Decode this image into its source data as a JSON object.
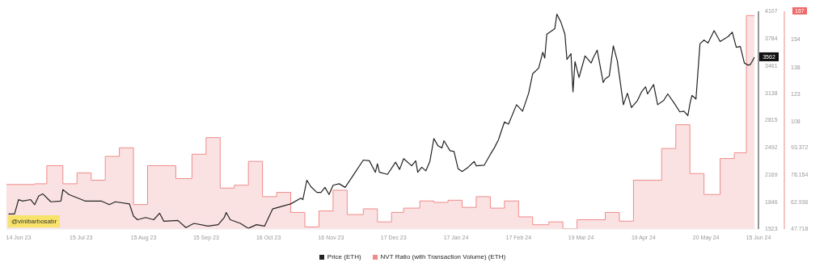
{
  "chart_data": {
    "type": "line",
    "xlim": [
      "2023-06-08",
      "2024-06-15"
    ],
    "xticks": [
      {
        "value": "2023-06-14",
        "label": "14 Jun 23"
      },
      {
        "value": "2023-07-15",
        "label": "15 Jul 23"
      },
      {
        "value": "2023-08-15",
        "label": "15 Aug 23"
      },
      {
        "value": "2023-09-15",
        "label": "15 Sep 23"
      },
      {
        "value": "2023-10-16",
        "label": "16 Oct 23"
      },
      {
        "value": "2023-11-16",
        "label": "16 Nov 23"
      },
      {
        "value": "2023-12-17",
        "label": "17 Dec 23"
      },
      {
        "value": "2024-01-17",
        "label": "17 Jan 24"
      },
      {
        "value": "2024-02-17",
        "label": "17 Feb 24"
      },
      {
        "value": "2024-03-19",
        "label": "19 Mar 24"
      },
      {
        "value": "2024-04-19",
        "label": "19 Apr 24"
      },
      {
        "value": "2024-05-20",
        "label": "20 May 24"
      },
      {
        "value": "2024-06-15",
        "label": "15 Jun 24"
      }
    ],
    "ylim": [
      1523,
      4107
    ],
    "yticks": [
      1523,
      1846,
      2169,
      2492,
      2815,
      3138,
      3461,
      3784,
      4107
    ],
    "y2lim": [
      47.718,
      169.4
    ],
    "y2ticks": [
      47.718,
      62.936,
      78.154,
      93.372,
      108,
      123,
      138,
      154
    ],
    "legend": "bottom",
    "annotations": [
      "@vinibarbosabr",
      "167",
      {
        "text": "3562",
        "x": "2024-06-13",
        "y": 3562
      }
    ],
    "series": [
      {
        "name": "NVT Ratio (with Transaction Volume) (ETH)",
        "type": "step",
        "axis": "y2",
        "color": "#f08a8a",
        "x": [
          "2023-06-08",
          "2023-06-22",
          "2023-06-28",
          "2023-07-06",
          "2023-07-13",
          "2023-07-20",
          "2023-07-27",
          "2023-08-03",
          "2023-08-10",
          "2023-08-17",
          "2023-08-31",
          "2023-09-08",
          "2023-09-15",
          "2023-09-22",
          "2023-09-29",
          "2023-10-06",
          "2023-10-13",
          "2023-10-20",
          "2023-10-27",
          "2023-11-03",
          "2023-11-10",
          "2023-11-17",
          "2023-11-24",
          "2023-12-02",
          "2023-12-09",
          "2023-12-16",
          "2023-12-22",
          "2023-12-30",
          "2024-01-06",
          "2024-01-13",
          "2024-01-20",
          "2024-01-27",
          "2024-02-03",
          "2024-02-10",
          "2024-02-17",
          "2024-02-24",
          "2024-03-03",
          "2024-03-10",
          "2024-03-17",
          "2024-03-31",
          "2024-04-07",
          "2024-04-14",
          "2024-04-28",
          "2024-05-05",
          "2024-05-12",
          "2024-05-19",
          "2024-05-27",
          "2024-06-03",
          "2024-06-09",
          "2024-06-13"
        ],
        "values": [
          72.6,
          73.0,
          83.1,
          73.0,
          79.1,
          75.0,
          88.3,
          93.1,
          61.4,
          83.1,
          75.9,
          89.5,
          98.8,
          70.6,
          72.2,
          85.5,
          65.8,
          68.2,
          57.0,
          48.9,
          57.8,
          69.4,
          55.8,
          59.0,
          51.7,
          57.0,
          59.4,
          63.4,
          62.6,
          63.8,
          59.8,
          65.8,
          59.4,
          63.4,
          54.5,
          50.1,
          51.7,
          47.9,
          52.9,
          57.0,
          52.1,
          75.0,
          92.7,
          106.0,
          78.7,
          67.0,
          87.1,
          90.3,
          167,
          167
        ]
      },
      {
        "name": "Price (ETH)",
        "axis": "y",
        "color": "#222222",
        "x": [
          "2023-06-09",
          "2023-06-12",
          "2023-06-14",
          "2023-06-16",
          "2023-06-20",
          "2023-06-22",
          "2023-06-24",
          "2023-06-26",
          "2023-06-30",
          "2023-07-05",
          "2023-07-06",
          "2023-07-09",
          "2023-07-17",
          "2023-07-25",
          "2023-07-29",
          "2023-08-01",
          "2023-08-08",
          "2023-08-10",
          "2023-08-12",
          "2023-08-16",
          "2023-08-20",
          "2023-08-23",
          "2023-08-25",
          "2023-09-01",
          "2023-09-05",
          "2023-09-09",
          "2023-09-16",
          "2023-09-21",
          "2023-09-24",
          "2023-09-25",
          "2023-09-27",
          "2023-10-02",
          "2023-10-06",
          "2023-10-10",
          "2023-10-14",
          "2023-10-18",
          "2023-10-23",
          "2023-10-27",
          "2023-11-01",
          "2023-11-02",
          "2023-11-04",
          "2023-11-06",
          "2023-11-09",
          "2023-11-11",
          "2023-11-13",
          "2023-11-15",
          "2023-11-17",
          "2023-11-20",
          "2023-11-23",
          "2023-11-28",
          "2023-12-02",
          "2023-12-05",
          "2023-12-08",
          "2023-12-09",
          "2023-12-10",
          "2023-12-14",
          "2023-12-18",
          "2023-12-20",
          "2023-12-22",
          "2023-12-26",
          "2023-12-28",
          "2023-12-29",
          "2023-12-31",
          "2024-01-02",
          "2024-01-04",
          "2024-01-06",
          "2024-01-08",
          "2024-01-10",
          "2024-01-11",
          "2024-01-14",
          "2024-01-16",
          "2024-01-18",
          "2024-01-20",
          "2024-01-23",
          "2024-01-26",
          "2024-01-27",
          "2024-01-31",
          "2024-02-03",
          "2024-02-05",
          "2024-02-07",
          "2024-02-10",
          "2024-02-12",
          "2024-02-16",
          "2024-02-19",
          "2024-02-22",
          "2024-02-24",
          "2024-02-27",
          "2024-02-29",
          "2024-03-01",
          "2024-03-02",
          "2024-03-06",
          "2024-03-07",
          "2024-03-09",
          "2024-03-11",
          "2024-03-12",
          "2024-03-14",
          "2024-03-15",
          "2024-03-16",
          "2024-03-18",
          "2024-03-21",
          "2024-03-24",
          "2024-03-25",
          "2024-03-27",
          "2024-03-30",
          "2024-03-31",
          "2024-04-02",
          "2024-04-04",
          "2024-04-06",
          "2024-04-09",
          "2024-04-11",
          "2024-04-13",
          "2024-04-16",
          "2024-04-18",
          "2024-04-20",
          "2024-04-21",
          "2024-04-24",
          "2024-04-26",
          "2024-04-29",
          "2024-05-01",
          "2024-05-04",
          "2024-05-07",
          "2024-05-09",
          "2024-05-11",
          "2024-05-12",
          "2024-05-13",
          "2024-05-15",
          "2024-05-17",
          "2024-05-19",
          "2024-05-21",
          "2024-05-24",
          "2024-05-27",
          "2024-05-31",
          "2024-06-02",
          "2024-06-04",
          "2024-06-06",
          "2024-06-08",
          "2024-06-10",
          "2024-06-11",
          "2024-06-13"
        ],
        "values": [
          1702,
          1702,
          1872,
          1855,
          1872,
          1812,
          1915,
          1940,
          1846,
          1855,
          1991,
          1932,
          1855,
          1855,
          1812,
          1846,
          1821,
          1676,
          1633,
          1659,
          1633,
          1710,
          1616,
          1625,
          1540,
          1590,
          1557,
          1574,
          1659,
          1719,
          1633,
          1590,
          1531,
          1574,
          1557,
          1761,
          1795,
          1821,
          1889,
          1872,
          2102,
          2025,
          1957,
          1957,
          2017,
          1932,
          2042,
          2060,
          2017,
          2196,
          2341,
          2333,
          2196,
          2298,
          2196,
          2171,
          2316,
          2230,
          2358,
          2273,
          2333,
          2196,
          2256,
          2213,
          2324,
          2597,
          2512,
          2486,
          2571,
          2452,
          2443,
          2239,
          2205,
          2256,
          2324,
          2273,
          2281,
          2409,
          2486,
          2580,
          2793,
          2768,
          2998,
          2921,
          3134,
          3365,
          3433,
          3621,
          3552,
          3834,
          3902,
          4073,
          3979,
          3834,
          3535,
          3604,
          3151,
          3510,
          3322,
          3578,
          3493,
          3552,
          3646,
          3262,
          3305,
          3339,
          3697,
          3518,
          2998,
          3134,
          2964,
          3049,
          3151,
          3211,
          3126,
          3237,
          2998,
          3049,
          3126,
          3024,
          2913,
          2921,
          2870,
          3007,
          3109,
          3066,
          3723,
          3765,
          3731,
          3877,
          3748,
          3808,
          3860,
          3680,
          3689,
          3493,
          3467,
          3476,
          3562
        ]
      }
    ]
  }
}
